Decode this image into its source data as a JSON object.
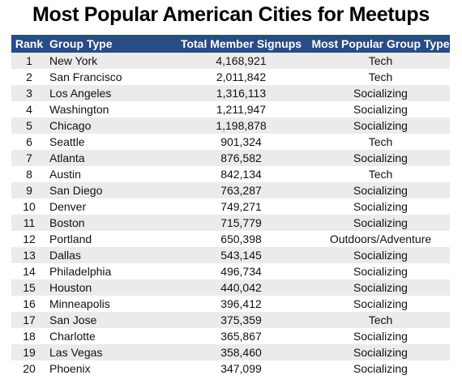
{
  "title": "Most Popular American Cities for Meetups",
  "table": {
    "headers": {
      "rank": "Rank",
      "group_type": "Group Type",
      "signups": "Total Member Signups",
      "popular_type": "Most Popular Group Type"
    },
    "rows": [
      {
        "rank": "1",
        "city": "New York",
        "signups": "4,168,921",
        "type": "Tech"
      },
      {
        "rank": "2",
        "city": "San Francisco",
        "signups": "2,011,842",
        "type": "Tech"
      },
      {
        "rank": "3",
        "city": "Los Angeles",
        "signups": "1,316,113",
        "type": "Socializing"
      },
      {
        "rank": "4",
        "city": "Washington",
        "signups": "1,211,947",
        "type": "Socializing"
      },
      {
        "rank": "5",
        "city": "Chicago",
        "signups": "1,198,878",
        "type": "Socializing"
      },
      {
        "rank": "6",
        "city": "Seattle",
        "signups": "901,324",
        "type": "Tech"
      },
      {
        "rank": "7",
        "city": "Atlanta",
        "signups": "876,582",
        "type": "Socializing"
      },
      {
        "rank": "8",
        "city": "Austin",
        "signups": "842,134",
        "type": "Tech"
      },
      {
        "rank": "9",
        "city": "San Diego",
        "signups": "763,287",
        "type": "Socializing"
      },
      {
        "rank": "10",
        "city": "Denver",
        "signups": "749,271",
        "type": "Socializing"
      },
      {
        "rank": "11",
        "city": "Boston",
        "signups": "715,779",
        "type": "Socializing"
      },
      {
        "rank": "12",
        "city": "Portland",
        "signups": "650,398",
        "type": "Outdoors/Adventure"
      },
      {
        "rank": "13",
        "city": "Dallas",
        "signups": "543,145",
        "type": "Socializing"
      },
      {
        "rank": "14",
        "city": "Philadelphia",
        "signups": "496,734",
        "type": "Socializing"
      },
      {
        "rank": "15",
        "city": "Houston",
        "signups": "440,042",
        "type": "Socializing"
      },
      {
        "rank": "16",
        "city": "Minneapolis",
        "signups": "396,412",
        "type": "Socializing"
      },
      {
        "rank": "17",
        "city": "San Jose",
        "signups": "375,359",
        "type": "Tech"
      },
      {
        "rank": "18",
        "city": "Charlotte",
        "signups": "365,867",
        "type": "Socializing"
      },
      {
        "rank": "19",
        "city": "Las Vegas",
        "signups": "358,460",
        "type": "Socializing"
      },
      {
        "rank": "20",
        "city": "Phoenix",
        "signups": "347,099",
        "type": "Socializing"
      }
    ]
  },
  "colors": {
    "header_bg": "#284c86",
    "header_text": "#ffffff",
    "stripe": "#ebebeb"
  }
}
